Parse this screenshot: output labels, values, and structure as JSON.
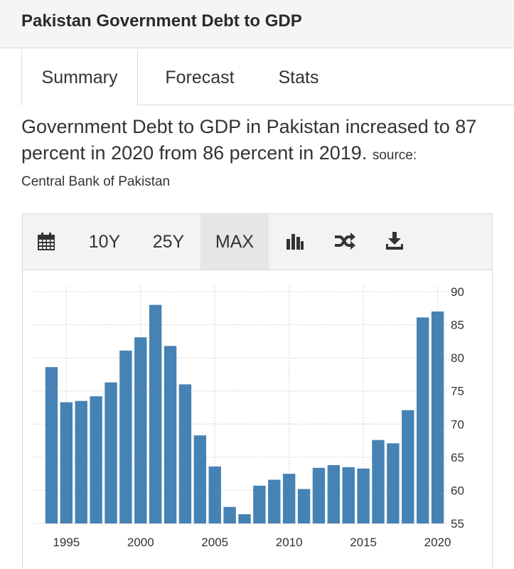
{
  "header": {
    "title": "Pakistan Government Debt to GDP"
  },
  "tabs": [
    {
      "label": "Summary"
    },
    {
      "label": "Forecast"
    },
    {
      "label": "Stats"
    }
  ],
  "description": {
    "text": "Government Debt to GDP in Pakistan increased to 87 percent in 2020 from 86 percent in 2019.",
    "source_label": "source:",
    "source_name": "Central Bank of Pakistan"
  },
  "toolbar": {
    "calendar_icon": "calendar-icon",
    "range_10y": "10Y",
    "range_25y": "25Y",
    "range_max": "MAX",
    "selected_range": "MAX",
    "chart_type_icon": "bar-chart-icon",
    "compare_icon": "shuffle-icon",
    "download_icon": "download-icon"
  },
  "chart_data": {
    "type": "bar",
    "color": "#4682b4",
    "x": [
      1994,
      1995,
      1996,
      1997,
      1998,
      1999,
      2000,
      2001,
      2002,
      2003,
      2004,
      2005,
      2006,
      2007,
      2008,
      2009,
      2010,
      2011,
      2012,
      2013,
      2014,
      2015,
      2016,
      2017,
      2018,
      2019,
      2020
    ],
    "values": [
      78.6,
      73.3,
      73.5,
      74.2,
      76.3,
      81.1,
      83.1,
      88.0,
      81.8,
      76.0,
      68.3,
      63.6,
      57.5,
      56.4,
      60.7,
      61.6,
      62.5,
      60.2,
      63.4,
      63.8,
      63.5,
      63.3,
      67.6,
      67.1,
      72.1,
      86.1,
      87.0
    ],
    "xticks": [
      1995,
      2000,
      2005,
      2010,
      2015,
      2020
    ],
    "yticks": [
      55,
      60,
      65,
      70,
      75,
      80,
      85,
      90
    ],
    "ylim": [
      55,
      90
    ],
    "grid": true,
    "yaxis_side": "right"
  }
}
